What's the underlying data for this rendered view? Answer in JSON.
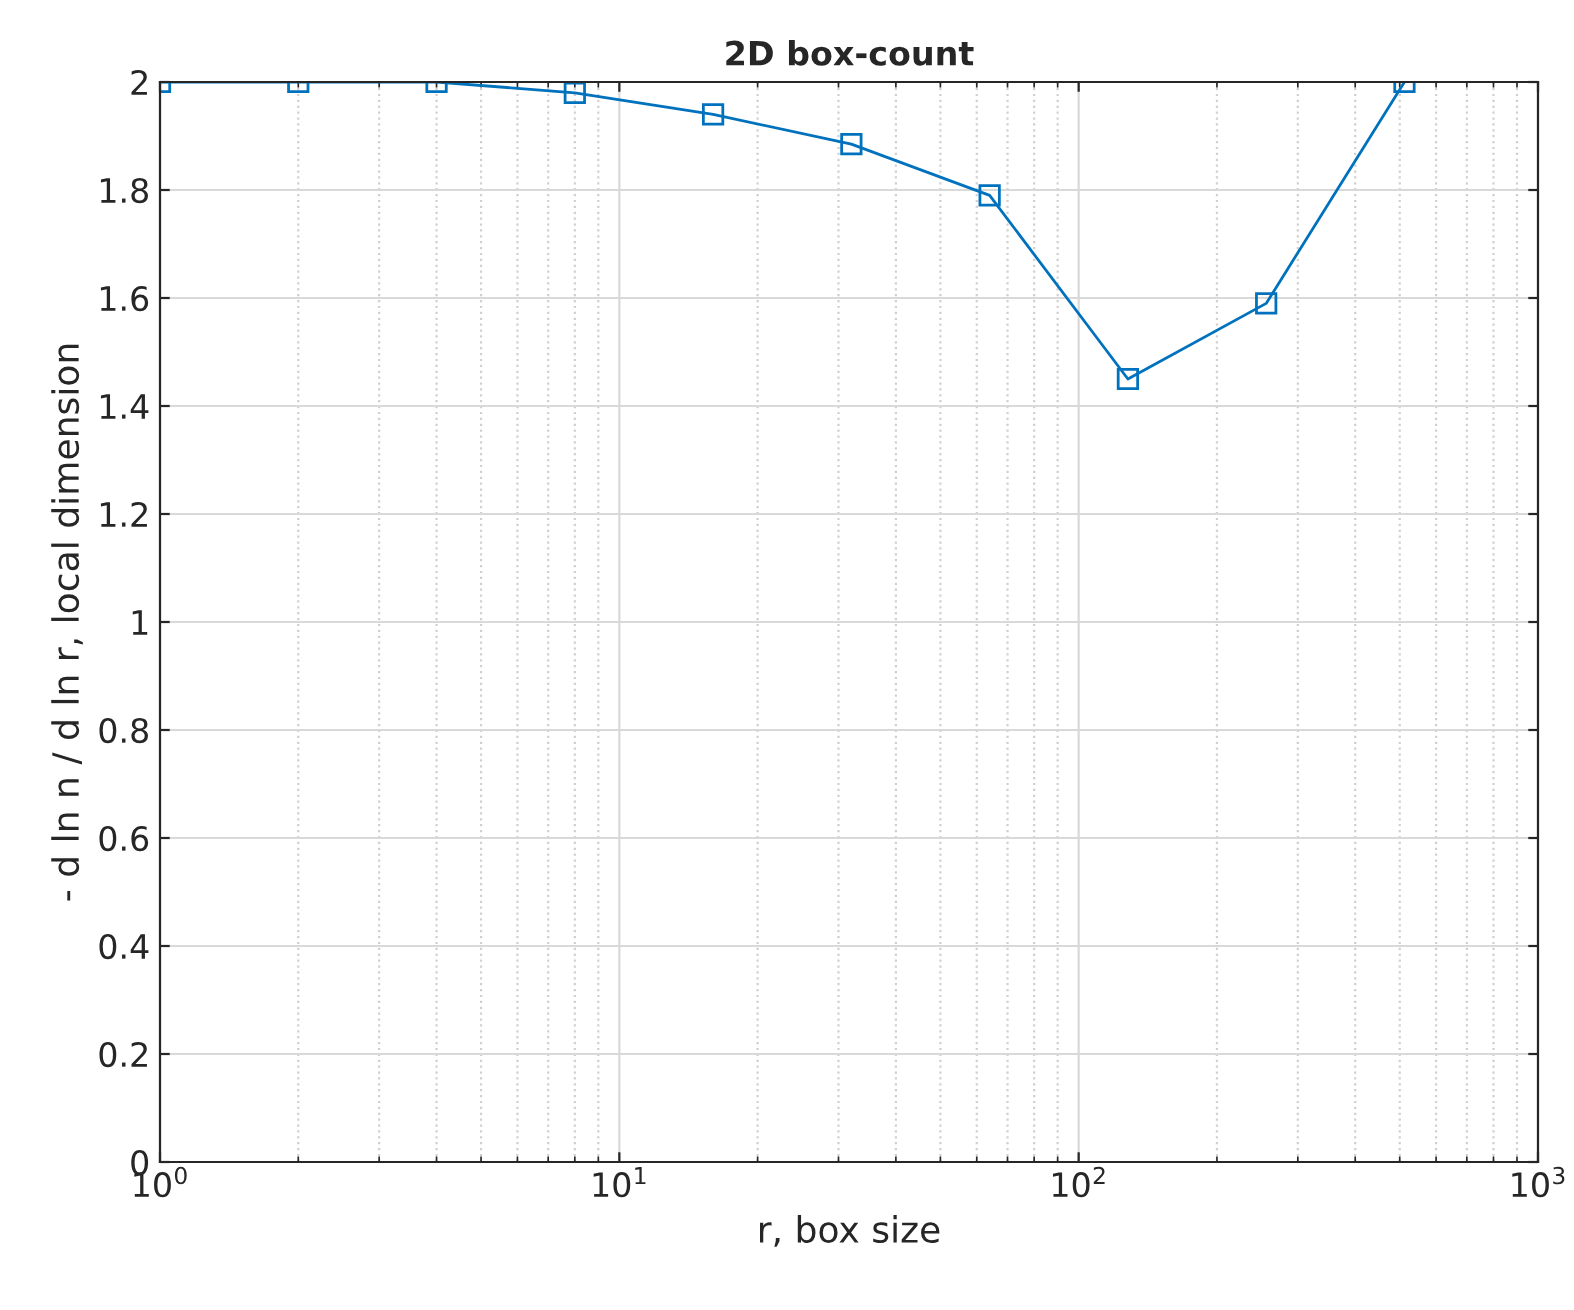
{
  "chart_data": {
    "type": "line",
    "title": "2D box-count",
    "xlabel": "r, box size",
    "ylabel": "- d ln n / d ln r, local dimension",
    "x": [
      1,
      2,
      4,
      8,
      16,
      32,
      64,
      128,
      256,
      512
    ],
    "series": [
      {
        "color": "#0072bd",
        "values": [
          2,
          2,
          2,
          1.98,
          1.94,
          1.885,
          1.79,
          1.45,
          1.59,
          2.0
        ]
      }
    ],
    "log": "x",
    "xlim": [
      1,
      1000
    ],
    "xticks": [
      {
        "value": 1,
        "label": "10$^{0}$"
      },
      {
        "value": 10,
        "label": "10$^{1}$"
      },
      {
        "value": 100,
        "label": "10$^{2}$"
      },
      {
        "value": 1000,
        "label": "10$^{3}$"
      }
    ],
    "ylim": [
      0,
      2
    ],
    "yticks": [
      0,
      0.2,
      0.4,
      0.6,
      0.8,
      1,
      1.2,
      1.4,
      1.6,
      1.8,
      2
    ],
    "grid": true,
    "marker": "square",
    "line_style": "solid"
  }
}
